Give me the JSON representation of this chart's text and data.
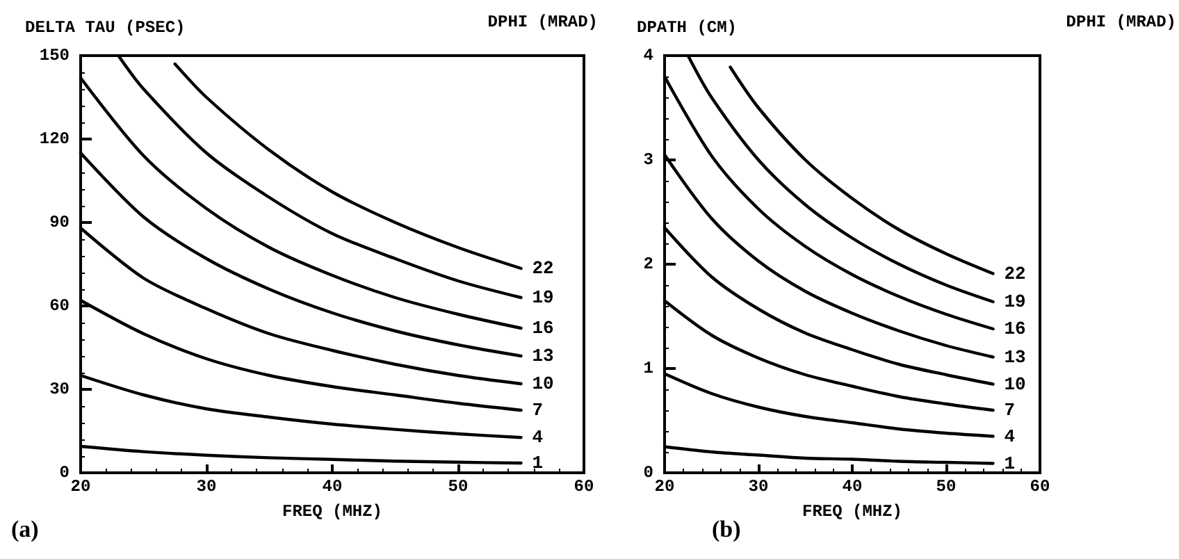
{
  "chart_data": [
    {
      "type": "line",
      "ylabel": "DELTA TAU (PSEC)",
      "legend_title": "DPHI (MRAD)",
      "xlabel": "FREQ (MHZ)",
      "annotations": [
        "(a)"
      ],
      "xlim": [
        20,
        60
      ],
      "xticks": [
        20,
        30,
        40,
        50,
        60
      ],
      "ylim": [
        0,
        150
      ],
      "yticks": [
        0,
        30,
        60,
        90,
        120,
        150
      ],
      "grid": false,
      "legend": false,
      "marker": "none",
      "line_style": "solid",
      "series": [
        {
          "name": "1",
          "color": "#000000",
          "x": [
            20,
            25,
            30,
            35,
            40,
            45,
            50,
            55
          ],
          "values": [
            9.5,
            7.6,
            6.3,
            5.4,
            4.8,
            4.2,
            3.8,
            3.5
          ]
        },
        {
          "name": "4",
          "color": "#000000",
          "x": [
            20,
            25,
            30,
            35,
            40,
            45,
            50,
            55
          ],
          "values": [
            35,
            28,
            23,
            20,
            17.5,
            15.6,
            14,
            12.7
          ]
        },
        {
          "name": "7",
          "color": "#000000",
          "x": [
            20,
            25,
            30,
            35,
            40,
            45,
            50,
            55
          ],
          "values": [
            62,
            50,
            41,
            35,
            31,
            28,
            25,
            22.5
          ]
        },
        {
          "name": "10",
          "color": "#000000",
          "x": [
            20,
            25,
            30,
            35,
            40,
            45,
            50,
            55
          ],
          "values": [
            88,
            70,
            59,
            50,
            44,
            39,
            35,
            32
          ]
        },
        {
          "name": "13",
          "color": "#000000",
          "x": [
            20,
            25,
            30,
            35,
            40,
            45,
            50,
            55
          ],
          "values": [
            115,
            92,
            77,
            66,
            57.5,
            51,
            46,
            42
          ]
        },
        {
          "name": "16",
          "color": "#000000",
          "x": [
            20,
            25,
            30,
            35,
            40,
            45,
            50,
            55
          ],
          "values": [
            142,
            114,
            95,
            81,
            71,
            63,
            57,
            52
          ]
        },
        {
          "name": "19",
          "color": "#000000",
          "x": [
            23,
            25,
            30,
            35,
            40,
            45,
            50,
            55
          ],
          "values": [
            150,
            138,
            115,
            99,
            86,
            77,
            69,
            63
          ]
        },
        {
          "name": "22",
          "color": "#000000",
          "x": [
            27.5,
            30,
            35,
            40,
            45,
            50,
            55
          ],
          "values": [
            147,
            135,
            116,
            101,
            90,
            81,
            73.5
          ]
        }
      ]
    },
    {
      "type": "line",
      "ylabel": "DPATH (CM)",
      "legend_title": "DPHI (MRAD)",
      "xlabel": "FREQ (MHZ)",
      "annotations": [
        "(b)"
      ],
      "xlim": [
        20,
        60
      ],
      "xticks": [
        20,
        30,
        40,
        50,
        60
      ],
      "ylim": [
        0,
        4
      ],
      "yticks": [
        0,
        1,
        2,
        3,
        4
      ],
      "grid": false,
      "legend": false,
      "marker": "none",
      "line_style": "solid",
      "series": [
        {
          "name": "1",
          "color": "#000000",
          "x": [
            20,
            25,
            30,
            35,
            40,
            45,
            50,
            55
          ],
          "values": [
            0.25,
            0.2,
            0.17,
            0.14,
            0.13,
            0.11,
            0.1,
            0.09
          ]
        },
        {
          "name": "4",
          "color": "#000000",
          "x": [
            20,
            25,
            30,
            35,
            40,
            45,
            50,
            55
          ],
          "values": [
            0.95,
            0.76,
            0.63,
            0.54,
            0.48,
            0.42,
            0.38,
            0.35
          ]
        },
        {
          "name": "7",
          "color": "#000000",
          "x": [
            20,
            25,
            30,
            35,
            40,
            45,
            50,
            55
          ],
          "values": [
            1.65,
            1.32,
            1.1,
            0.94,
            0.83,
            0.73,
            0.66,
            0.6
          ]
        },
        {
          "name": "10",
          "color": "#000000",
          "x": [
            20,
            25,
            30,
            35,
            40,
            45,
            50,
            55
          ],
          "values": [
            2.35,
            1.88,
            1.57,
            1.34,
            1.18,
            1.04,
            0.94,
            0.85
          ]
        },
        {
          "name": "13",
          "color": "#000000",
          "x": [
            20,
            25,
            30,
            35,
            40,
            45,
            50,
            55
          ],
          "values": [
            3.05,
            2.44,
            2.03,
            1.74,
            1.53,
            1.36,
            1.22,
            1.11
          ]
        },
        {
          "name": "16",
          "color": "#000000",
          "x": [
            20,
            25,
            30,
            35,
            40,
            45,
            50,
            55
          ],
          "values": [
            3.8,
            3.04,
            2.53,
            2.17,
            1.9,
            1.69,
            1.52,
            1.38
          ]
        },
        {
          "name": "19",
          "color": "#000000",
          "x": [
            22.5,
            25,
            30,
            35,
            40,
            45,
            50,
            55
          ],
          "values": [
            4.0,
            3.6,
            3.0,
            2.57,
            2.25,
            2.0,
            1.8,
            1.64
          ]
        },
        {
          "name": "22",
          "color": "#000000",
          "x": [
            27,
            30,
            35,
            40,
            45,
            50,
            55
          ],
          "values": [
            3.89,
            3.5,
            3.0,
            2.63,
            2.33,
            2.1,
            1.91
          ]
        }
      ]
    }
  ]
}
